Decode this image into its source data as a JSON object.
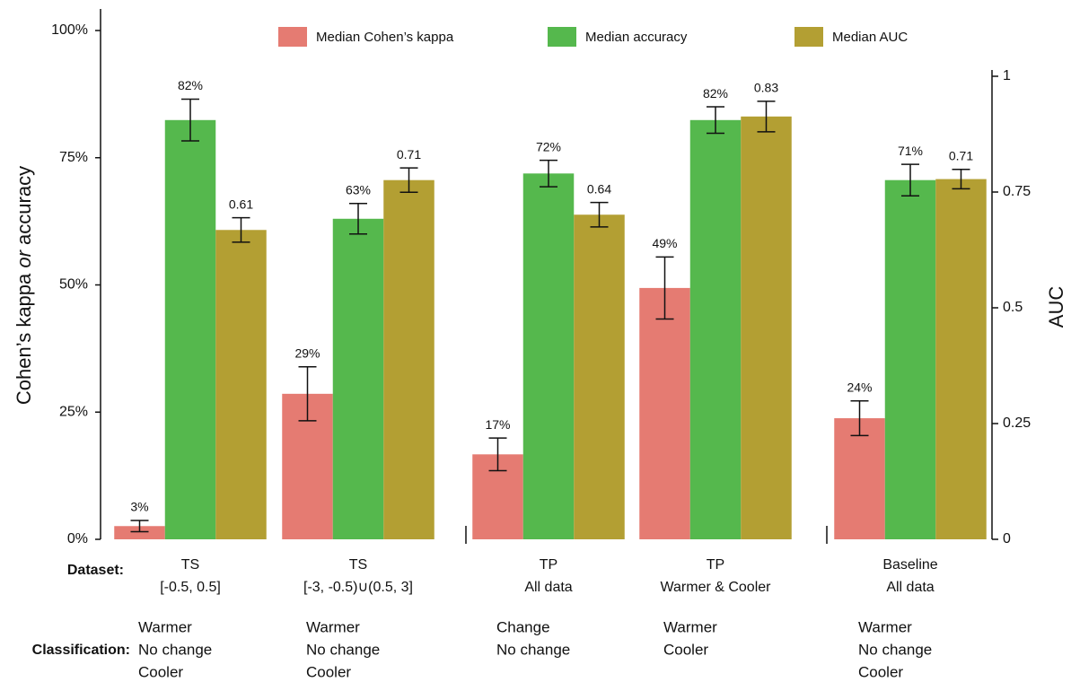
{
  "chart_data": {
    "type": "bar",
    "ylabel": {
      "before": "Cohen’s kappa",
      "emphasis": "or",
      "after": "accuracy"
    },
    "y2label": "AUC",
    "categories": [
      [
        "TS",
        "[-0.5, 0.5]"
      ],
      [
        "TS",
        "[-3, -0.5)∪(0.5, 3]"
      ],
      [
        "TP",
        "All data"
      ],
      [
        "TP",
        "Warmer & Cooler"
      ],
      [
        "Baseline",
        "All data"
      ]
    ],
    "classifications": [
      [
        "Warmer",
        "No change",
        "Cooler"
      ],
      [
        "Warmer",
        "No change",
        "Cooler"
      ],
      [
        "Change",
        "No change"
      ],
      [
        "Warmer",
        "Cooler"
      ],
      [
        "Warmer",
        "No change",
        "Cooler"
      ]
    ],
    "row_labels": {
      "dataset": "Dataset:",
      "classification": "Classification:"
    },
    "series": [
      {
        "name": "Median Cohen’s kappa",
        "color": "#e57b72",
        "values": [
          2.6,
          28.6,
          16.7,
          49.4,
          23.8
        ],
        "errors": [
          1.1,
          5.3,
          3.2,
          6.1,
          3.4
        ],
        "value_labels": [
          "3%",
          "29%",
          "17%",
          "49%",
          "24%"
        ]
      },
      {
        "name": "Median accuracy",
        "color": "#55b84d",
        "values": [
          82.4,
          63,
          71.9,
          82.4,
          70.6
        ],
        "errors": [
          4.1,
          3.0,
          2.6,
          2.6,
          3.1
        ],
        "value_labels": [
          "82%",
          "63%",
          "72%",
          "82%",
          "71%"
        ]
      },
      {
        "name": "Median AUC",
        "color": "#b39f33",
        "values": [
          60.8,
          70.6,
          63.8,
          83.1,
          70.8
        ],
        "errors": [
          2.4,
          2.4,
          2.4,
          3.0,
          1.9
        ],
        "value_labels": [
          "0.61",
          "0.71",
          "0.64",
          "0.83",
          "0.71"
        ]
      }
    ],
    "ylim": [
      0,
      100
    ],
    "yticks": [
      {
        "value": 0,
        "label": "0%"
      },
      {
        "value": 25,
        "label": "25%"
      },
      {
        "value": 50,
        "label": "50%"
      },
      {
        "value": 75,
        "label": "75%"
      },
      {
        "value": 100,
        "label": "100%"
      }
    ],
    "y2lim": [
      0,
      1
    ],
    "y2ticks": [
      0,
      0.25,
      0.5,
      0.75,
      1
    ],
    "legend": "top"
  }
}
